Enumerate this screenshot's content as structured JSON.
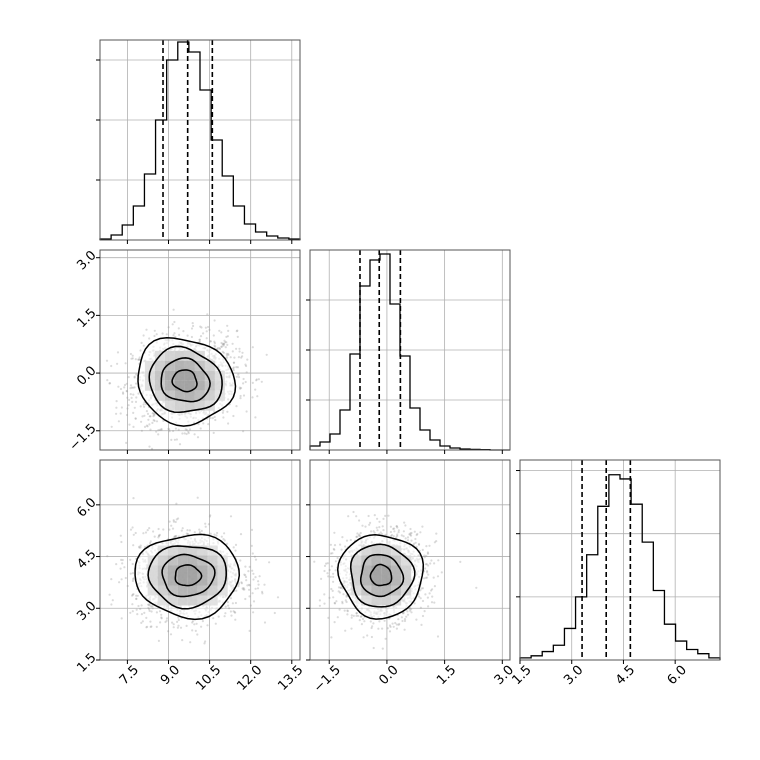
{
  "chart_data": {
    "type": "corner",
    "style": {
      "line_color": "#000000",
      "grid_color": "#b0b0b0",
      "frame_color": "#555555",
      "scatter_color": "#999999"
    },
    "params": [
      {
        "range": [
          6.5,
          13.8
        ],
        "ticks": [
          7.5,
          9.0,
          10.5,
          12.0,
          13.5
        ],
        "tick_labels": [
          "7.5",
          "9.0",
          "10.5",
          "12.0",
          "13.5"
        ],
        "quantiles": [
          8.8,
          9.7,
          10.6
        ]
      },
      {
        "range": [
          -2.0,
          3.2
        ],
        "ticks": [
          -1.5,
          0.0,
          1.5,
          3.0
        ],
        "tick_labels": [
          "−1.5",
          "0.0",
          "1.5",
          "3.0"
        ],
        "quantiles": [
          -0.7,
          -0.2,
          0.35
        ]
      },
      {
        "range": [
          1.5,
          7.3
        ],
        "ticks": [
          1.5,
          3.0,
          4.5,
          6.0
        ],
        "tick_labels": [
          "1.5",
          "3.0",
          "4.5",
          "6.0"
        ],
        "quantiles": [
          3.3,
          4.0,
          4.7
        ]
      }
    ],
    "histograms": [
      {
        "values": [
          0.005,
          0.025,
          0.075,
          0.17,
          0.33,
          0.6,
          0.9,
          0.99,
          0.94,
          0.75,
          0.5,
          0.32,
          0.17,
          0.08,
          0.04,
          0.02,
          0.01,
          0.005
        ],
        "ylim": [
          0,
          1.0
        ],
        "gridlines": [
          0.3,
          0.6,
          0.9
        ]
      },
      {
        "values": [
          0.02,
          0.04,
          0.08,
          0.2,
          0.48,
          0.82,
          0.95,
          0.98,
          0.73,
          0.47,
          0.21,
          0.1,
          0.05,
          0.02,
          0.01,
          0.005,
          0.003,
          0.002,
          0.0,
          0.0
        ],
        "ylim": [
          0,
          1.0
        ],
        "gridlines": [
          0.25,
          0.5,
          0.75
        ]
      },
      {
        "values": [
          0.01,
          0.02,
          0.04,
          0.07,
          0.15,
          0.3,
          0.5,
          0.73,
          0.88,
          0.86,
          0.74,
          0.56,
          0.33,
          0.17,
          0.09,
          0.05,
          0.03,
          0.01
        ],
        "ylim": [
          0,
          0.95
        ],
        "gridlines": [
          0.3,
          0.6,
          0.9
        ]
      }
    ],
    "density_2d": [
      {
        "x": 0,
        "y": 1,
        "center": [
          9.6,
          -0.2
        ],
        "sigma": [
          0.9,
          0.55
        ],
        "rho": 0.12,
        "n_points": 1600
      },
      {
        "x": 0,
        "y": 2,
        "center": [
          9.7,
          3.95
        ],
        "sigma": [
          0.95,
          0.6
        ],
        "rho": 0.0,
        "n_points": 1600
      },
      {
        "x": 1,
        "y": 2,
        "center": [
          -0.15,
          3.95
        ],
        "sigma": [
          0.55,
          0.6
        ],
        "rho": 0.08,
        "n_points": 1600
      }
    ],
    "contour_levels_sigma": [
      0.5,
      1.0,
      1.5,
      2.0
    ],
    "grid": true
  }
}
